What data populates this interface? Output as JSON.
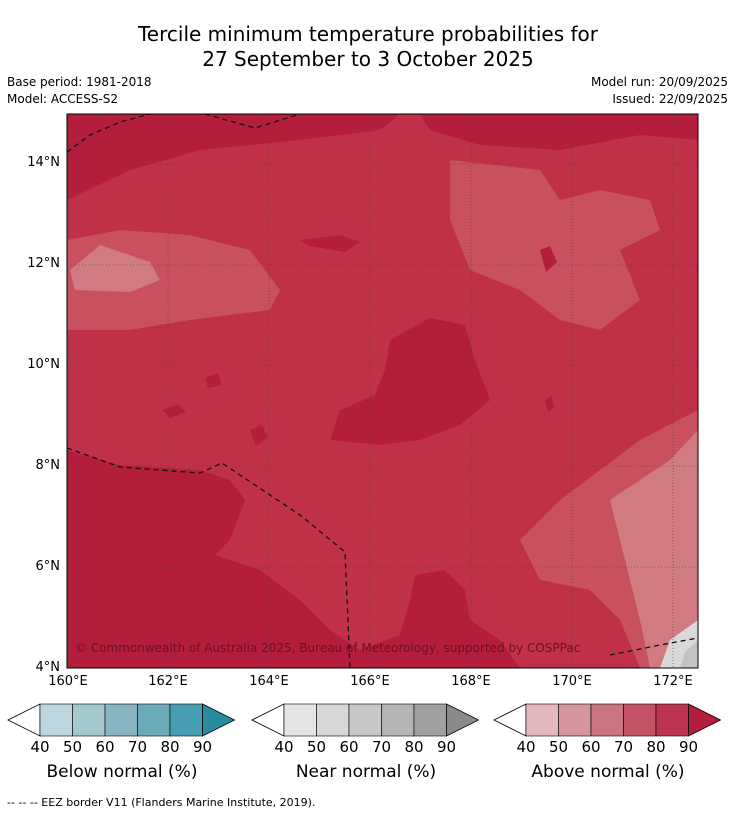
{
  "title_line1": "Tercile minimum temperature probabilities for",
  "title_line2": "27 September to 3 October 2025",
  "base_period": "Base period: 1981-2018",
  "model": "Model: ACCESS-S2",
  "model_run": "Model run: 20/09/2025",
  "issued": "Issued: 22/09/2025",
  "map": {
    "lat_ticks": [
      "14°N",
      "12°N",
      "10°N",
      "8°N",
      "6°N",
      "4°N"
    ],
    "lon_ticks": [
      "160°E",
      "162°E",
      "164°E",
      "166°E",
      "168°E",
      "170°E",
      "172°E"
    ],
    "copyright": "© Commonwealth of Australia 2025, Bureau of Meteorology, supported by COSPPac",
    "colors": {
      "above_90": "#b41e3c",
      "above_80": "#c03048",
      "above_70": "#c9505f",
      "above_60": "#d07a82",
      "near_30": "#d9d9d9"
    }
  },
  "legends": [
    {
      "name": "Below normal (%)",
      "ticks": [
        "40",
        "50",
        "60",
        "70",
        "80",
        "90"
      ],
      "colors": [
        "#bdd5dc",
        "#a3c8ce",
        "#87b6c2",
        "#6aaab9",
        "#479eb2",
        "#2a8a9e"
      ]
    },
    {
      "name": "Near normal (%)",
      "ticks": [
        "40",
        "50",
        "60",
        "70",
        "80",
        "90"
      ],
      "colors": [
        "#e5e5e5",
        "#d7d7d7",
        "#c8c8c8",
        "#b4b4b4",
        "#a0a0a0",
        "#8a8a8a"
      ]
    },
    {
      "name": "Above normal (%)",
      "ticks": [
        "40",
        "50",
        "60",
        "70",
        "80",
        "90"
      ],
      "colors": [
        "#e3b8bf",
        "#d6969f",
        "#cc747f",
        "#c55366",
        "#bc3450",
        "#b41e3c"
      ]
    }
  ],
  "footnote": "--  --  -- EEZ border V11 (Flanders Marine Institute, 2019)."
}
